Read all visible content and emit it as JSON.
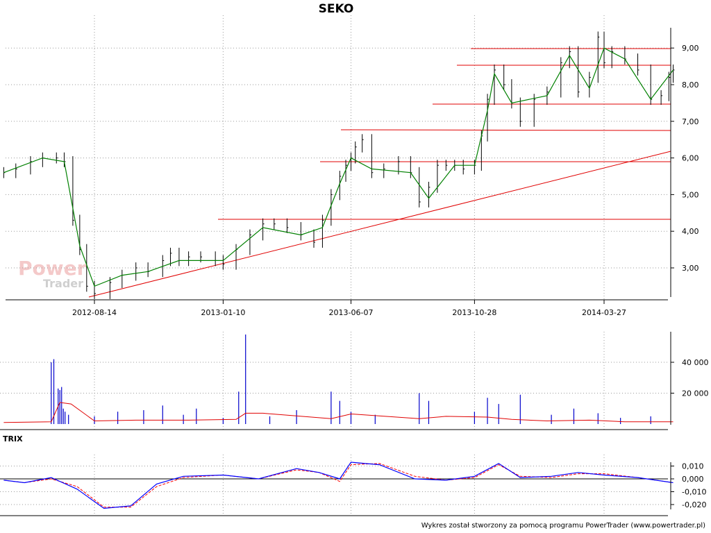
{
  "chart_data": [
    {
      "type": "line",
      "title": "SEKO",
      "x_tick_labels": [
        "2012-08-14",
        "2013-01-10",
        "2013-06-07",
        "2013-10-28",
        "2014-03-27"
      ],
      "y_tick_labels": [
        "3,00",
        "4,00",
        "5,00",
        "6,00",
        "7,00",
        "8,00",
        "9,00"
      ],
      "ylim": [
        2.25,
        9.5
      ],
      "grid": true,
      "series": [
        {
          "style": "price-bars",
          "color": "#000000",
          "x": [
            "2012-05-01",
            "2012-05-15",
            "2012-06-01",
            "2012-06-15",
            "2012-07-01",
            "2012-07-10",
            "2012-07-20",
            "2012-07-28",
            "2012-08-05",
            "2012-08-14",
            "2012-09-01",
            "2012-09-15",
            "2012-10-01",
            "2012-10-15",
            "2012-11-01",
            "2012-11-10",
            "2012-11-20",
            "2012-12-01",
            "2012-12-15",
            "2013-01-01",
            "2013-01-10",
            "2013-01-25",
            "2013-02-10",
            "2013-02-25",
            "2013-03-10",
            "2013-03-25",
            "2013-04-10",
            "2013-04-25",
            "2013-05-05",
            "2013-05-15",
            "2013-05-25",
            "2013-06-01",
            "2013-06-07",
            "2013-06-12",
            "2013-06-20",
            "2013-07-01",
            "2013-07-15",
            "2013-08-01",
            "2013-08-15",
            "2013-08-25",
            "2013-09-05",
            "2013-09-15",
            "2013-09-25",
            "2013-10-05",
            "2013-10-15",
            "2013-10-28",
            "2013-11-05",
            "2013-11-12",
            "2013-11-20",
            "2013-12-01",
            "2013-12-10",
            "2013-12-20",
            "2014-01-05",
            "2014-01-20",
            "2014-02-05",
            "2014-02-15",
            "2014-02-25",
            "2014-03-10",
            "2014-03-20",
            "2014-03-27",
            "2014-04-05",
            "2014-04-20",
            "2014-05-05",
            "2014-05-20",
            "2014-06-01",
            "2014-06-10",
            "2014-06-15"
          ],
          "values": [
            5.6,
            5.7,
            5.9,
            6.0,
            6.0,
            5.9,
            4.3,
            3.5,
            2.5,
            2.3,
            2.6,
            2.8,
            3.0,
            2.9,
            3.2,
            3.4,
            3.2,
            3.3,
            3.3,
            3.2,
            3.1,
            3.5,
            3.9,
            4.2,
            4.2,
            4.1,
            3.9,
            3.7,
            4.3,
            5.0,
            5.5,
            5.8,
            6.0,
            6.3,
            6.5,
            5.6,
            5.7,
            5.9,
            5.6,
            4.8,
            5.2,
            5.8,
            5.8,
            5.8,
            5.7,
            5.8,
            6.6,
            7.6,
            8.4,
            8.0,
            7.5,
            7.0,
            7.6,
            7.8,
            8.6,
            8.9,
            7.8,
            8.2,
            9.3,
            8.6,
            8.9,
            8.7,
            8.4,
            7.6,
            7.7,
            8.2,
            8.4
          ]
        },
        {
          "style": "moving-average",
          "color": "#008000",
          "x": [
            "2012-05-01",
            "2012-06-15",
            "2012-07-10",
            "2012-07-28",
            "2012-08-14",
            "2012-09-15",
            "2012-10-15",
            "2012-11-20",
            "2013-01-10",
            "2013-02-25",
            "2013-04-10",
            "2013-05-05",
            "2013-05-25",
            "2013-06-07",
            "2013-07-01",
            "2013-08-15",
            "2013-09-05",
            "2013-10-05",
            "2013-10-28",
            "2013-11-12",
            "2013-11-20",
            "2013-12-10",
            "2014-01-20",
            "2014-02-15",
            "2014-03-10",
            "2014-03-27",
            "2014-04-20",
            "2014-05-20",
            "2014-06-15"
          ],
          "values": [
            5.6,
            6.0,
            5.9,
            3.6,
            2.5,
            2.8,
            2.9,
            3.2,
            3.2,
            4.1,
            3.9,
            4.1,
            5.3,
            6.0,
            5.7,
            5.6,
            4.9,
            5.8,
            5.8,
            7.3,
            8.3,
            7.5,
            7.7,
            8.8,
            7.9,
            9.0,
            8.7,
            7.6,
            8.4
          ]
        }
      ]
    },
    {
      "type": "bar",
      "y_tick_labels": [
        "20 000",
        "40 000"
      ],
      "ylim": [
        0,
        58000
      ],
      "series": [
        {
          "style": "volume-bars",
          "color": "#0000cc",
          "x": [
            "2012-06-25",
            "2012-06-28",
            "2012-07-03",
            "2012-07-05",
            "2012-07-07",
            "2012-07-09",
            "2012-07-11",
            "2012-07-15",
            "2012-08-14",
            "2012-09-10",
            "2012-10-10",
            "2012-11-01",
            "2012-11-25",
            "2012-12-10",
            "2013-01-10",
            "2013-01-28",
            "2013-02-05",
            "2013-03-05",
            "2013-04-05",
            "2013-05-15",
            "2013-05-25",
            "2013-06-07",
            "2013-07-05",
            "2013-08-25",
            "2013-09-05",
            "2013-10-28",
            "2013-11-12",
            "2013-11-25",
            "2013-12-20",
            "2014-01-25",
            "2014-02-20",
            "2014-03-20",
            "2014-04-15",
            "2014-05-20"
          ],
          "values": [
            40000,
            42000,
            23000,
            22000,
            24000,
            10000,
            8000,
            6000,
            5000,
            8000,
            9000,
            12000,
            6000,
            10000,
            4000,
            21000,
            58000,
            5000,
            9000,
            21000,
            15000,
            8000,
            6000,
            20000,
            15000,
            8000,
            17000,
            13000,
            19000,
            6000,
            10000,
            7000,
            4000,
            5000
          ]
        },
        {
          "style": "volume-average",
          "color": "#e00000",
          "x": [
            "2012-05-01",
            "2012-06-25",
            "2012-07-05",
            "2012-07-18",
            "2012-08-14",
            "2012-10-01",
            "2012-12-01",
            "2013-01-25",
            "2013-02-05",
            "2013-02-25",
            "2013-05-15",
            "2013-06-07",
            "2013-08-25",
            "2013-09-25",
            "2013-11-12",
            "2013-12-10",
            "2014-01-20",
            "2014-03-10",
            "2014-04-20",
            "2014-06-15"
          ],
          "values": [
            1000,
            1500,
            14000,
            13000,
            2000,
            2500,
            2500,
            3000,
            7000,
            7000,
            3500,
            6500,
            3500,
            5000,
            4500,
            3000,
            2000,
            2500,
            1500,
            1500
          ]
        }
      ]
    },
    {
      "type": "line",
      "title": "TRIX",
      "y_tick_labels": [
        "-0,020",
        "-0,010",
        "0,000",
        "0,010"
      ],
      "ylim": [
        -0.027,
        0.015
      ],
      "series": [
        {
          "style": "trix",
          "color": "#0000ff",
          "x": [
            "2012-05-01",
            "2012-05-25",
            "2012-06-25",
            "2012-07-25",
            "2012-08-25",
            "2012-09-25",
            "2012-10-25",
            "2012-11-25",
            "2013-01-10",
            "2013-02-20",
            "2013-04-05",
            "2013-05-01",
            "2013-05-25",
            "2013-06-07",
            "2013-07-10",
            "2013-08-20",
            "2013-09-25",
            "2013-10-28",
            "2013-11-25",
            "2013-12-20",
            "2014-01-25",
            "2014-02-25",
            "2014-03-27",
            "2014-05-05",
            "2014-06-15"
          ],
          "values": [
            -0.001,
            -0.003,
            0.001,
            -0.008,
            -0.023,
            -0.021,
            -0.004,
            0.002,
            0.003,
            0.0,
            0.008,
            0.005,
            0.0,
            0.013,
            0.011,
            0.0,
            -0.001,
            0.002,
            0.012,
            0.001,
            0.002,
            0.005,
            0.003,
            0.001,
            -0.003
          ]
        },
        {
          "style": "trix-signal",
          "color": "#ff0000",
          "x": [
            "2012-05-01",
            "2012-05-25",
            "2012-06-25",
            "2012-07-25",
            "2012-08-25",
            "2012-09-25",
            "2012-10-25",
            "2012-11-25",
            "2013-01-10",
            "2013-02-20",
            "2013-04-05",
            "2013-05-01",
            "2013-05-25",
            "2013-06-07",
            "2013-07-10",
            "2013-08-20",
            "2013-09-25",
            "2013-10-28",
            "2013-11-25",
            "2013-12-20",
            "2014-01-25",
            "2014-02-25",
            "2014-03-27",
            "2014-05-05",
            "2014-06-15"
          ],
          "values": [
            -0.001,
            -0.003,
            0.0,
            -0.006,
            -0.022,
            -0.022,
            -0.006,
            0.001,
            0.003,
            0.0,
            0.007,
            0.005,
            -0.002,
            0.011,
            0.012,
            0.002,
            -0.001,
            0.001,
            0.011,
            0.002,
            0.001,
            0.004,
            0.004,
            0.001,
            -0.003
          ]
        }
      ]
    }
  ],
  "colors": {
    "price_bars": "#000000",
    "price_ma": "#008000",
    "support_lines": "#e00000",
    "volume_bars": "#0000cc",
    "volume_ma": "#e00000",
    "trix": "#0000ff",
    "trix_signal": "#ff0000"
  },
  "watermark": {
    "line1": "Power",
    "line2": "Trader"
  },
  "footer": "Wykres został stworzony za pomocą programu PowerTrader (www.powertrader.pl)"
}
